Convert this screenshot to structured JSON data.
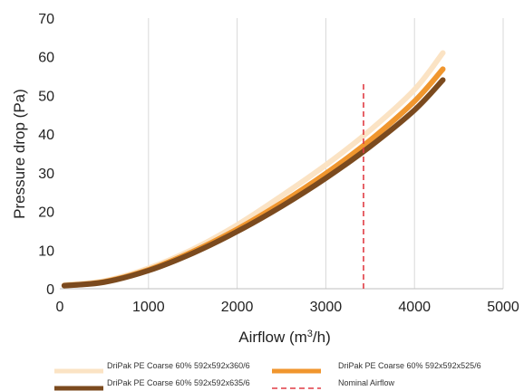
{
  "chart_data": {
    "type": "line",
    "xlabel_main": "Airflow (m",
    "xlabel_sup": "3",
    "xlabel_tail": "/h)",
    "ylabel": "Pressure drop (Pa)",
    "xlim": [
      0,
      5000
    ],
    "ylim": [
      0,
      70
    ],
    "xticks": [
      0,
      1000,
      2000,
      3000,
      4000,
      5000
    ],
    "yticks": [
      0,
      10,
      20,
      30,
      40,
      50,
      60,
      70
    ],
    "grid": "vertical",
    "legend_position": "bottom",
    "series": [
      {
        "name": "DriPak PE Coarse 60% 592x592x360/6",
        "color": "#FBE3C4",
        "style": "solid",
        "x": [
          50,
          500,
          1000,
          1500,
          2000,
          2500,
          3000,
          3500,
          4000,
          4320
        ],
        "y": [
          1.0,
          2.0,
          5.3,
          10.2,
          16.5,
          24.0,
          32.0,
          41.0,
          51.5,
          61.0
        ]
      },
      {
        "name": "DriPak PE Coarse 60% 592x592x525/6",
        "color": "#F0962E",
        "style": "solid",
        "x": [
          50,
          500,
          1000,
          1500,
          2000,
          2500,
          3000,
          3500,
          4000,
          4320
        ],
        "y": [
          0.8,
          1.8,
          4.9,
          9.6,
          15.4,
          22.2,
          29.8,
          38.4,
          48.5,
          56.8
        ]
      },
      {
        "name": "DriPak PE Coarse 60% 592x592x635/6",
        "color": "#7B4A1E",
        "style": "solid",
        "x": [
          50,
          500,
          1000,
          1500,
          2000,
          2500,
          3000,
          3500,
          4000,
          4320
        ],
        "y": [
          0.8,
          1.7,
          4.7,
          9.2,
          14.8,
          21.3,
          28.6,
          36.8,
          46.2,
          54.0
        ]
      },
      {
        "name": "Nominal Airflow",
        "color": "#E03C45",
        "style": "dashed",
        "x": [
          3425,
          3425
        ],
        "y": [
          0,
          53.5
        ]
      }
    ]
  }
}
